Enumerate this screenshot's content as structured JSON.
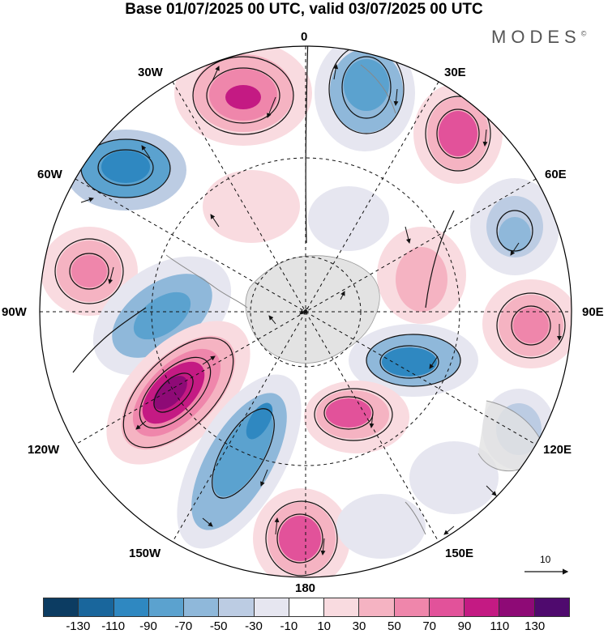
{
  "title": "Base 01/07/2025 00 UTC, valid 03/07/2025 00 UTC",
  "brand": "MODES",
  "brand_mark": "©",
  "map": {
    "projection": "polar stereographic (south pole)",
    "labels": {
      "n0": "0",
      "w30": "30W",
      "e30": "30E",
      "w60": "60W",
      "e60": "60E",
      "w90": "90W",
      "e90": "90E",
      "w120": "120W",
      "e120": "120E",
      "w150": "150W",
      "e150": "150E",
      "n180": "180"
    },
    "vector_reference": "10"
  },
  "colorbar": {
    "colors": [
      "#0c3c62",
      "#19669c",
      "#2f88c1",
      "#5ba2cf",
      "#8fb8da",
      "#bccce3",
      "#e6e6f0",
      "#ffffff",
      "#f9dbe0",
      "#f5b3c2",
      "#ef86ab",
      "#e2529a",
      "#c41a83",
      "#8e0a76",
      "#4f0a6e"
    ],
    "ticks": [
      "-130",
      "-110",
      "-90",
      "-70",
      "-50",
      "-30",
      "-10",
      "10",
      "30",
      "50",
      "70",
      "90",
      "110",
      "130"
    ]
  }
}
